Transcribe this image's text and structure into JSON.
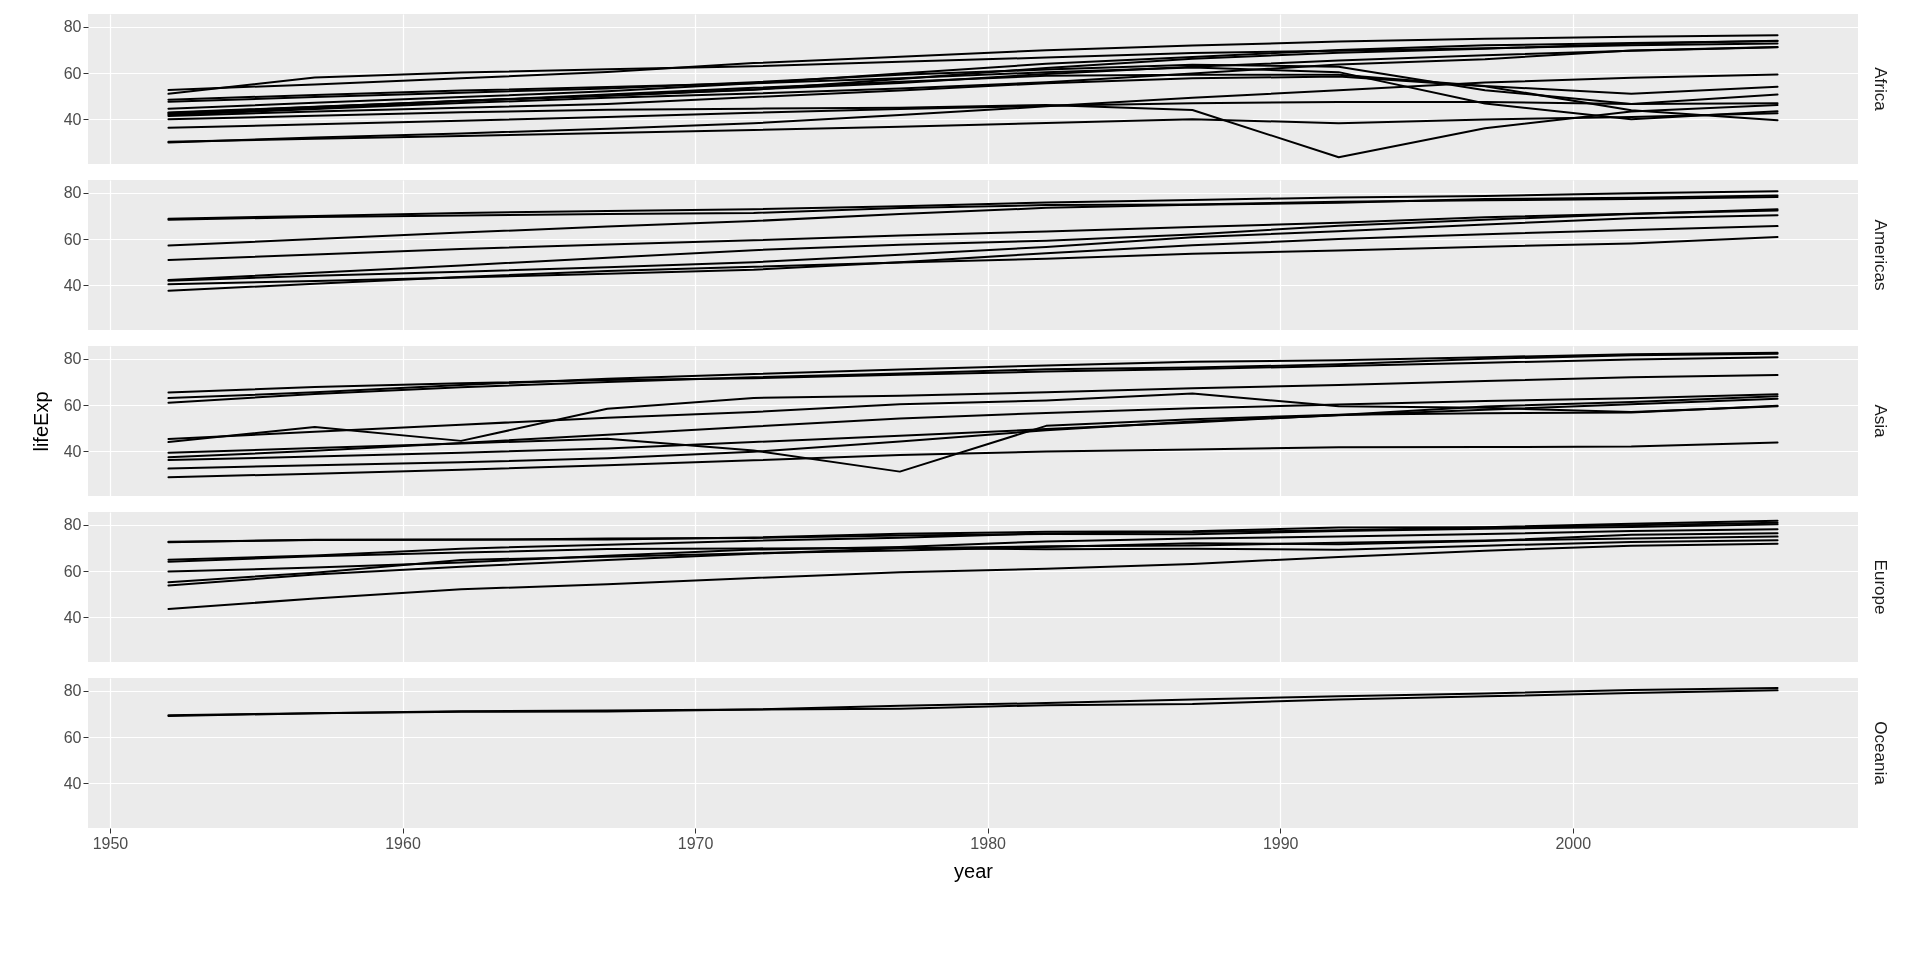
{
  "chart_data": [
    {
      "type": "line",
      "annotations": [
        "Africa"
      ],
      "x": [
        1952,
        1957,
        1962,
        1967,
        1972,
        1977,
        1982,
        1987,
        1992,
        1997,
        2002,
        2007
      ],
      "xlim": [
        1949.25,
        2009.75
      ],
      "xticks": [
        1950,
        1960,
        1970,
        1980,
        1990,
        2000
      ],
      "ylim": [
        20.65,
        85.55
      ],
      "yticks": [
        40,
        60,
        80
      ],
      "grid": true,
      "tick_labels": "y",
      "series": [
        {
          "color": "#000000",
          "values": [
            52.7,
            55.1,
            57.7,
            60.5,
            64.3,
            67.1,
            69.9,
            71.9,
            73.6,
            74.8,
            75.7,
            76.4
          ]
        },
        {
          "color": "#000000",
          "values": [
            51.0,
            58.1,
            60.2,
            61.6,
            62.9,
            64.9,
            66.7,
            68.7,
            69.7,
            70.7,
            72.0,
            72.8
          ]
        },
        {
          "color": "#000000",
          "values": [
            44.6,
            47.1,
            49.6,
            52.1,
            55.6,
            59.8,
            64.0,
            66.9,
            70.0,
            72.0,
            73.0,
            73.9
          ]
        },
        {
          "color": "#000000",
          "values": [
            30.3,
            31.6,
            32.8,
            34.1,
            35.4,
            36.8,
            38.4,
            40.0,
            38.3,
            39.9,
            41.0,
            42.6
          ]
        },
        {
          "color": "#000000",
          "values": [
            40.0,
            41.5,
            43.0,
            44.1,
            44.6,
            45.0,
            46.2,
            44.0,
            23.6,
            36.1,
            43.4,
            46.2
          ]
        },
        {
          "color": "#000000",
          "values": [
            48.5,
            50.5,
            52.4,
            54.0,
            55.6,
            57.7,
            60.4,
            62.4,
            60.4,
            46.8,
            40.0,
            43.5
          ]
        },
        {
          "color": "#000000",
          "values": [
            41.4,
            43.4,
            45.0,
            46.6,
            49.6,
            52.5,
            55.6,
            57.7,
            58.5,
            54.3,
            43.9,
            39.6
          ]
        },
        {
          "color": "#000000",
          "values": [
            47.6,
            49.6,
            51.5,
            53.3,
            56.0,
            59.3,
            61.5,
            63.6,
            62.7,
            52.6,
            46.6,
            50.7
          ]
        },
        {
          "color": "#000000",
          "values": [
            41.9,
            44.4,
            47.0,
            49.3,
            51.1,
            53.3,
            56.0,
            59.8,
            63.7,
            66.0,
            69.8,
            71.3
          ]
        },
        {
          "color": "#000000",
          "values": [
            42.7,
            45.3,
            48.0,
            50.2,
            52.8,
            57.4,
            62.2,
            66.2,
            68.8,
            70.5,
            72.7,
            74.0
          ]
        },
        {
          "color": "#000000",
          "values": [
            30.0,
            32.1,
            33.9,
            35.9,
            38.3,
            41.8,
            45.6,
            49.3,
            52.6,
            55.9,
            58.0,
            59.4
          ]
        },
        {
          "color": "#000000",
          "values": [
            36.3,
            37.8,
            39.4,
            41.0,
            42.8,
            44.5,
            45.8,
            46.9,
            47.5,
            47.5,
            46.6,
            46.9
          ]
        },
        {
          "color": "#000000",
          "values": [
            42.3,
            44.7,
            47.9,
            50.7,
            53.6,
            56.2,
            58.8,
            59.3,
            59.3,
            54.4,
            51.0,
            54.1
          ]
        },
        {
          "color": "#000000",
          "values": [
            42.9,
            45.4,
            47.9,
            50.3,
            52.9,
            55.7,
            59.6,
            62.7,
            65.4,
            67.7,
            69.6,
            71.2
          ]
        }
      ]
    },
    {
      "type": "line",
      "annotations": [
        "Americas"
      ],
      "x": [
        1952,
        1957,
        1962,
        1967,
        1972,
        1977,
        1982,
        1987,
        1992,
        1997,
        2002,
        2007
      ],
      "xlim": [
        1949.25,
        2009.75
      ],
      "xticks": [
        1950,
        1960,
        1970,
        1980,
        1990,
        2000
      ],
      "ylim": [
        20.65,
        85.55
      ],
      "yticks": [
        40,
        60,
        80
      ],
      "grid": true,
      "tick_labels": "y",
      "series": [
        {
          "color": "#000000",
          "values": [
            68.8,
            70.0,
            71.3,
            72.1,
            72.9,
            74.2,
            75.8,
            76.9,
            78.0,
            78.6,
            79.8,
            80.7
          ]
        },
        {
          "color": "#000000",
          "values": [
            37.6,
            40.7,
            43.6,
            46.2,
            48.0,
            49.9,
            51.5,
            53.6,
            55.1,
            56.7,
            58.1,
            60.9
          ]
        },
        {
          "color": "#000000",
          "values": [
            40.4,
            41.9,
            43.4,
            45.0,
            46.7,
            50.0,
            53.9,
            57.3,
            60.0,
            62.1,
            63.9,
            65.6
          ]
        },
        {
          "color": "#000000",
          "values": [
            68.4,
            69.5,
            70.2,
            70.8,
            71.3,
            73.4,
            74.7,
            75.0,
            76.1,
            76.8,
            77.3,
            78.2
          ]
        },
        {
          "color": "#000000",
          "values": [
            42.0,
            44.1,
            45.9,
            47.8,
            50.0,
            53.2,
            56.6,
            60.8,
            63.4,
            66.3,
            69.0,
            70.3
          ]
        },
        {
          "color": "#000000",
          "values": [
            50.9,
            53.3,
            55.7,
            57.6,
            59.5,
            61.5,
            63.3,
            65.2,
            67.1,
            69.4,
            71.0,
            72.4
          ]
        },
        {
          "color": "#000000",
          "values": [
            42.3,
            45.4,
            48.6,
            51.9,
            55.2,
            57.5,
            59.3,
            62.0,
            65.8,
            68.4,
            70.8,
            72.9
          ]
        },
        {
          "color": "#000000",
          "values": [
            57.2,
            60.0,
            62.8,
            65.4,
            67.8,
            70.8,
            73.5,
            74.8,
            75.7,
            77.3,
            77.9,
            78.8
          ]
        }
      ]
    },
    {
      "type": "line",
      "annotations": [
        "Asia"
      ],
      "ylabel": "lifeExp",
      "x": [
        1952,
        1957,
        1962,
        1967,
        1972,
        1977,
        1982,
        1987,
        1992,
        1997,
        2002,
        2007
      ],
      "xlim": [
        1949.25,
        2009.75
      ],
      "xticks": [
        1950,
        1960,
        1970,
        1980,
        1990,
        2000
      ],
      "ylim": [
        20.65,
        85.55
      ],
      "yticks": [
        40,
        60,
        80
      ],
      "grid": true,
      "tick_labels": "y",
      "series": [
        {
          "color": "#000000",
          "values": [
            28.8,
            30.3,
            32.0,
            34.0,
            36.1,
            38.4,
            39.9,
            40.8,
            41.7,
            41.8,
            42.1,
            43.8
          ]
        },
        {
          "color": "#000000",
          "values": [
            39.4,
            41.4,
            43.4,
            45.4,
            40.3,
            31.2,
            51.0,
            53.9,
            55.8,
            56.5,
            56.8,
            59.7
          ]
        },
        {
          "color": "#000000",
          "values": [
            63.0,
            65.5,
            68.7,
            71.4,
            73.4,
            75.4,
            77.1,
            78.7,
            79.4,
            80.7,
            82.0,
            82.6
          ]
        },
        {
          "color": "#000000",
          "values": [
            65.4,
            67.8,
            69.4,
            70.8,
            71.6,
            73.1,
            74.5,
            75.6,
            76.9,
            78.3,
            79.7,
            80.7
          ]
        },
        {
          "color": "#000000",
          "values": [
            44.0,
            50.5,
            44.5,
            58.4,
            63.1,
            64.0,
            65.5,
            67.3,
            68.7,
            70.4,
            72.0,
            73.0
          ]
        },
        {
          "color": "#000000",
          "values": [
            37.4,
            40.2,
            43.6,
            47.2,
            50.7,
            54.2,
            56.6,
            58.6,
            60.2,
            61.8,
            62.9,
            64.7
          ]
        },
        {
          "color": "#000000",
          "values": [
            32.5,
            34.0,
            35.2,
            37.0,
            39.8,
            44.2,
            49.1,
            52.9,
            55.6,
            58.0,
            60.3,
            62.7
          ]
        },
        {
          "color": "#000000",
          "values": [
            45.3,
            48.4,
            51.5,
            54.5,
            57.0,
            60.4,
            62.0,
            65.0,
            59.5,
            58.8,
            57.0,
            59.5
          ]
        },
        {
          "color": "#000000",
          "values": [
            36.2,
            37.7,
            39.4,
            41.2,
            44.0,
            46.7,
            49.6,
            52.5,
            55.7,
            59.4,
            61.3,
            63.8
          ]
        },
        {
          "color": "#000000",
          "values": [
            61.0,
            64.8,
            67.7,
            70.0,
            72.0,
            73.6,
            75.5,
            76.2,
            77.6,
            80.0,
            81.5,
            82.2
          ]
        }
      ]
    },
    {
      "type": "line",
      "annotations": [
        "Europe"
      ],
      "x": [
        1952,
        1957,
        1962,
        1967,
        1972,
        1977,
        1982,
        1987,
        1992,
        1997,
        2002,
        2007
      ],
      "xlim": [
        1949.25,
        2009.75
      ],
      "xticks": [
        1950,
        1960,
        1970,
        1980,
        1990,
        2000
      ],
      "ylim": [
        20.65,
        85.55
      ],
      "yticks": [
        40,
        60,
        80
      ],
      "grid": true,
      "tick_labels": "y",
      "series": [
        {
          "color": "#000000",
          "values": [
            43.6,
            48.1,
            52.1,
            54.3,
            57.0,
            59.5,
            61.0,
            63.1,
            66.1,
            68.8,
            71.0,
            71.8
          ]
        },
        {
          "color": "#000000",
          "values": [
            72.5,
            73.5,
            73.7,
            73.7,
            74.5,
            76.1,
            77.0,
            77.2,
            78.8,
            79.0,
            80.5,
            81.8
          ]
        },
        {
          "color": "#000000",
          "values": [
            72.7,
            73.4,
            73.5,
            74.1,
            74.3,
            75.4,
            76.0,
            75.9,
            77.3,
            78.3,
            79.1,
            80.2
          ]
        },
        {
          "color": "#000000",
          "values": [
            59.8,
            61.5,
            63.7,
            66.6,
            69.3,
            70.4,
            72.8,
            74.1,
            74.9,
            76.0,
            77.3,
            78.1
          ]
        },
        {
          "color": "#000000",
          "values": [
            55.2,
            59.3,
            64.8,
            66.2,
            67.7,
            68.9,
            70.4,
            72.0,
            71.6,
            73.0,
            75.7,
            76.4
          ]
        },
        {
          "color": "#000000",
          "values": [
            53.8,
            58.5,
            61.9,
            64.8,
            67.5,
            69.9,
            70.7,
            71.1,
            72.2,
            73.2,
            74.1,
            74.9
          ]
        },
        {
          "color": "#000000",
          "values": [
            64.9,
            66.7,
            69.7,
            71.4,
            73.1,
            74.4,
            76.3,
            76.9,
            77.6,
            78.8,
            79.8,
            80.9
          ]
        },
        {
          "color": "#000000",
          "values": [
            64.0,
            66.4,
            68.0,
            69.5,
            69.8,
            70.0,
            69.4,
            69.6,
            69.2,
            71.0,
            72.6,
            73.3
          ]
        }
      ]
    },
    {
      "type": "line",
      "annotations": [
        "Oceania"
      ],
      "xlabel": "year",
      "x": [
        1952,
        1957,
        1962,
        1967,
        1972,
        1977,
        1982,
        1987,
        1992,
        1997,
        2002,
        2007
      ],
      "xlim": [
        1949.25,
        2009.75
      ],
      "xticks": [
        1950,
        1960,
        1970,
        1980,
        1990,
        2000
      ],
      "ylim": [
        20.65,
        85.55
      ],
      "yticks": [
        40,
        60,
        80
      ],
      "grid": true,
      "series": [
        {
          "color": "#000000",
          "values": [
            69.1,
            70.3,
            70.9,
            71.1,
            71.9,
            73.5,
            74.7,
            76.3,
            77.6,
            78.8,
            80.4,
            81.2
          ]
        },
        {
          "color": "#000000",
          "values": [
            69.4,
            70.3,
            71.2,
            71.5,
            71.9,
            72.2,
            73.8,
            74.3,
            76.3,
            77.6,
            79.1,
            80.2
          ]
        }
      ]
    }
  ]
}
